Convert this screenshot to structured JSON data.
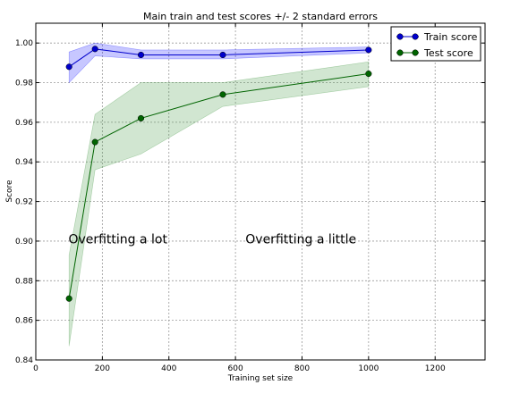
{
  "chart_data": {
    "type": "line",
    "title": "Main train and test scores +/- 2 standard errors",
    "xlabel": "Training set size",
    "ylabel": "Score",
    "xlim": [
      0,
      1350
    ],
    "ylim": [
      0.84,
      1.01
    ],
    "xticks": [
      0,
      200,
      400,
      600,
      800,
      1000,
      1200
    ],
    "yticks": [
      0.84,
      0.86,
      0.88,
      0.9,
      0.92,
      0.94,
      0.96,
      0.98,
      1.0
    ],
    "ytick_labels": [
      "0.84",
      "0.86",
      "0.88",
      "0.90",
      "0.92",
      "0.94",
      "0.96",
      "0.98",
      "1.00"
    ],
    "grid": true,
    "legend_position": "top-right",
    "x": [
      100,
      178,
      316,
      562,
      1000
    ],
    "series": [
      {
        "name": "Train score",
        "color": "#0000cc",
        "band_color": "#0000ff",
        "values": [
          0.988,
          0.997,
          0.994,
          0.994,
          0.9965
        ],
        "lower": [
          0.98,
          0.9935,
          0.992,
          0.992,
          0.995
        ],
        "upper": [
          0.9955,
          1.0,
          0.9965,
          0.9965,
          0.998
        ]
      },
      {
        "name": "Test score",
        "color": "#006400",
        "band_color": "#2e8b2e",
        "values": [
          0.871,
          0.95,
          0.962,
          0.974,
          0.9845
        ],
        "lower": [
          0.847,
          0.936,
          0.944,
          0.968,
          0.978
        ],
        "upper": [
          0.893,
          0.964,
          0.98,
          0.98,
          0.9905
        ]
      }
    ],
    "annotations": [
      {
        "text": "Overfitting a lot",
        "x": 98,
        "y": 0.901
      },
      {
        "text": "Overfitting a little",
        "x": 630,
        "y": 0.901
      }
    ]
  }
}
